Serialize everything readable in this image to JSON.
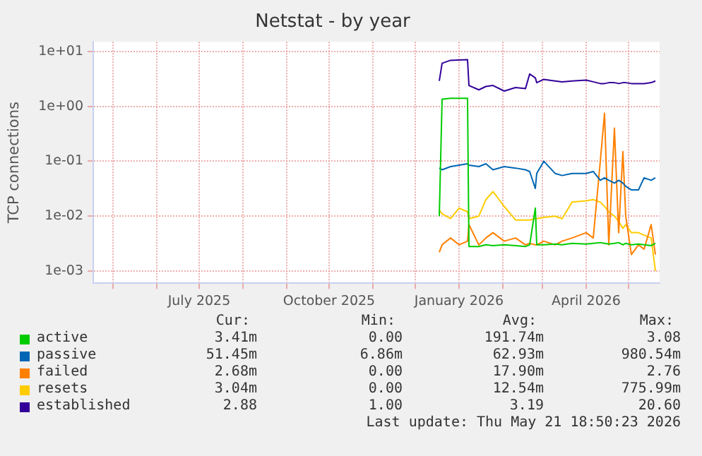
{
  "chart_data": {
    "type": "line",
    "title": "Netstat - by year",
    "ylabel": "TCP connections",
    "x": [
      "2025-12-18",
      "2025-12-20",
      "2025-12-26",
      "2026-01-01",
      "2026-01-07",
      "2026-01-08",
      "2026-01-15",
      "2026-01-20",
      "2026-01-25",
      "2026-02-02",
      "2026-02-10",
      "2026-02-17",
      "2026-02-20",
      "2026-02-24",
      "2026-02-25",
      "2026-03-02",
      "2026-03-10",
      "2026-03-15",
      "2026-03-22",
      "2026-04-01",
      "2026-04-06",
      "2026-04-11",
      "2026-04-14",
      "2026-04-17",
      "2026-04-21",
      "2026-04-24",
      "2026-04-27",
      "2026-04-29",
      "2026-05-03",
      "2026-05-08",
      "2026-05-12",
      "2026-05-17",
      "2026-05-20"
    ],
    "series": [
      {
        "name": "active",
        "color": "#00cc00",
        "values": [
          0.01,
          1.35,
          1.4,
          1.4,
          1.4,
          0.0028,
          0.0028,
          0.003,
          0.0029,
          0.003,
          0.0029,
          0.0028,
          0.003,
          0.014,
          0.003,
          0.003,
          0.0031,
          0.003,
          0.0032,
          0.0031,
          0.0032,
          0.0033,
          0.0032,
          0.0031,
          0.0032,
          0.0033,
          0.003,
          0.0032,
          0.003,
          0.0031,
          0.003,
          0.0029,
          0.0032
        ]
      },
      {
        "name": "passive",
        "color": "#0066b3",
        "values": [
          0.075,
          0.07,
          0.08,
          0.085,
          0.09,
          0.085,
          0.08,
          0.09,
          0.07,
          0.08,
          0.075,
          0.07,
          0.065,
          0.032,
          0.06,
          0.1,
          0.06,
          0.055,
          0.06,
          0.06,
          0.065,
          0.045,
          0.05,
          0.045,
          0.04,
          0.045,
          0.04,
          0.035,
          0.03,
          0.03,
          0.05,
          0.045,
          0.05
        ]
      },
      {
        "name": "failed",
        "color": "#ff8000",
        "values": [
          0.0022,
          0.003,
          0.004,
          0.003,
          0.0035,
          0.007,
          0.003,
          0.004,
          0.005,
          0.0035,
          0.004,
          0.003,
          0.0032,
          0.003,
          0.003,
          0.0035,
          0.003,
          0.0035,
          0.004,
          0.005,
          0.004,
          0.1,
          0.75,
          0.003,
          0.4,
          0.005,
          0.15,
          0.01,
          0.002,
          0.003,
          0.0025,
          0.007,
          0.002
        ]
      },
      {
        "name": "resets",
        "color": "#ffcc00",
        "values": [
          0.013,
          0.011,
          0.009,
          0.014,
          0.012,
          0.009,
          0.01,
          0.02,
          0.028,
          0.015,
          0.0085,
          0.0085,
          0.0085,
          0.009,
          0.009,
          0.0095,
          0.01,
          0.009,
          0.018,
          0.019,
          0.02,
          0.018,
          0.015,
          0.012,
          0.01,
          0.008,
          0.006,
          0.007,
          0.005,
          0.005,
          0.0045,
          0.004,
          0.001
        ]
      },
      {
        "name": "established",
        "color": "#330099",
        "values": [
          2.9,
          6.1,
          6.9,
          7.0,
          7.1,
          2.4,
          2.0,
          2.3,
          2.4,
          1.9,
          2.2,
          2.1,
          3.9,
          3.3,
          2.7,
          3.1,
          2.9,
          2.8,
          2.9,
          3.0,
          2.8,
          2.6,
          2.6,
          2.7,
          2.7,
          2.6,
          2.7,
          2.7,
          2.6,
          2.6,
          2.6,
          2.7,
          2.9
        ]
      }
    ],
    "xlim": [
      "2025-04-17",
      "2026-05-23"
    ],
    "xticks": [
      {
        "value": "2025-05-01",
        "label": null
      },
      {
        "value": "2025-06-01",
        "label": null
      },
      {
        "value": "2025-07-01",
        "label": "July 2025"
      },
      {
        "value": "2025-08-01",
        "label": null
      },
      {
        "value": "2025-09-01",
        "label": null
      },
      {
        "value": "2025-10-01",
        "label": "October 2025"
      },
      {
        "value": "2025-11-01",
        "label": null
      },
      {
        "value": "2025-12-01",
        "label": null
      },
      {
        "value": "2026-01-01",
        "label": "January 2026"
      },
      {
        "value": "2026-02-01",
        "label": null
      },
      {
        "value": "2026-03-01",
        "label": null
      },
      {
        "value": "2026-04-01",
        "label": "April 2026"
      },
      {
        "value": "2026-05-01",
        "label": null
      }
    ],
    "ylim": [
      0.0006,
      15
    ],
    "yticks": [
      {
        "value": 0.001,
        "label": "1e-03"
      },
      {
        "value": 0.01,
        "label": "1e-02"
      },
      {
        "value": 0.1,
        "label": "1e-01"
      },
      {
        "value": 1,
        "label": "1e+00"
      },
      {
        "value": 10,
        "label": "1e+01"
      }
    ],
    "log": "y",
    "grid": true,
    "legend": "bottom",
    "marker": "none",
    "line_style": "solid",
    "annotations": [
      "Cur:",
      "Min:",
      "Avg:",
      "Max:",
      "3.41m",
      "0.00",
      "191.74m",
      "3.08",
      "51.45m",
      "6.86m",
      "62.93m",
      "980.54m",
      "2.68m",
      "0.00",
      "17.90m",
      "2.76",
      "3.04m",
      "0.00",
      "12.54m",
      "775.99m",
      "2.88",
      "1.00",
      "3.19",
      "20.60",
      "Last update: Thu May 21 18:50:23 2026"
    ]
  }
}
